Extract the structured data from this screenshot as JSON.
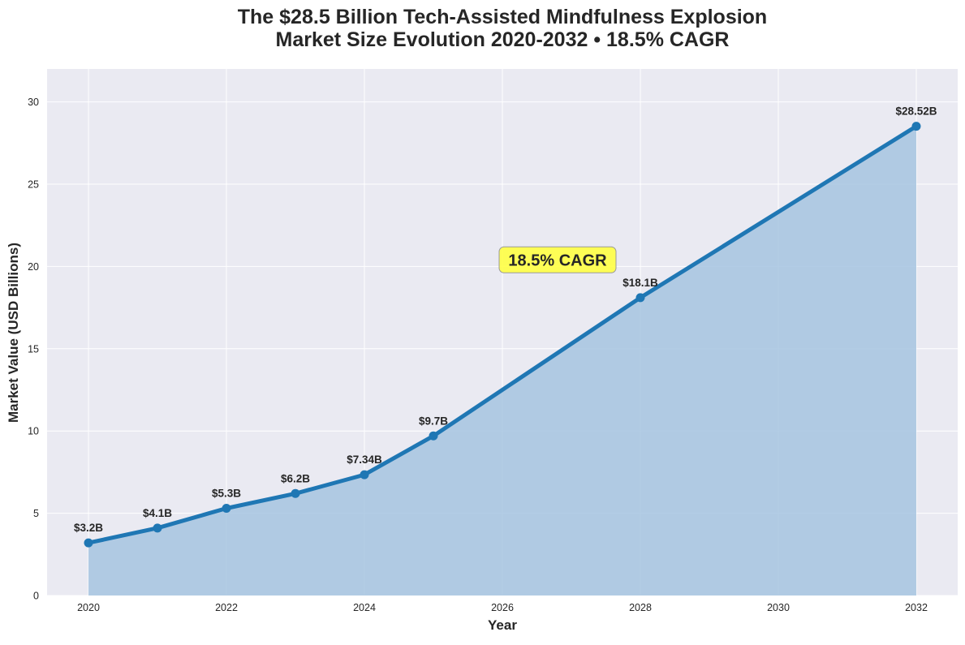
{
  "chart_data": {
    "type": "area",
    "title": [
      "The $28.5 Billion Tech-Assisted Mindfulness Explosion",
      "Market Size Evolution 2020-2032 • 18.5% CAGR"
    ],
    "xlabel": "Year",
    "ylabel": "Market Value (USD Billions)",
    "xlim": [
      2019.4,
      2032.6
    ],
    "ylim": [
      0,
      32
    ],
    "xticks": [
      2020,
      2022,
      2024,
      2026,
      2028,
      2030,
      2032
    ],
    "yticks": [
      0,
      5,
      10,
      15,
      20,
      25,
      30
    ],
    "grid": true,
    "series": [
      {
        "name": "Market Size",
        "x": [
          2020,
          2021,
          2022,
          2023,
          2024,
          2025,
          2028,
          2032
        ],
        "values": [
          3.2,
          4.1,
          5.3,
          6.2,
          7.34,
          9.7,
          18.1,
          28.52
        ],
        "labels": [
          "$3.2B",
          "$4.1B",
          "$5.3B",
          "$6.2B",
          "$7.34B",
          "$9.7B",
          "$18.1B",
          "$28.52B"
        ]
      }
    ],
    "annotation": {
      "text": "18.5% CAGR",
      "x": 2026.8,
      "y": 20.4
    },
    "colors": {
      "line": "#1f77b4",
      "fill": "#a6c4e0",
      "plot_bg": "#eaeaf2",
      "grid": "#ffffff",
      "annotation_bg": "#ffff44",
      "annotation_border": "#999999",
      "text": "#262626"
    }
  }
}
